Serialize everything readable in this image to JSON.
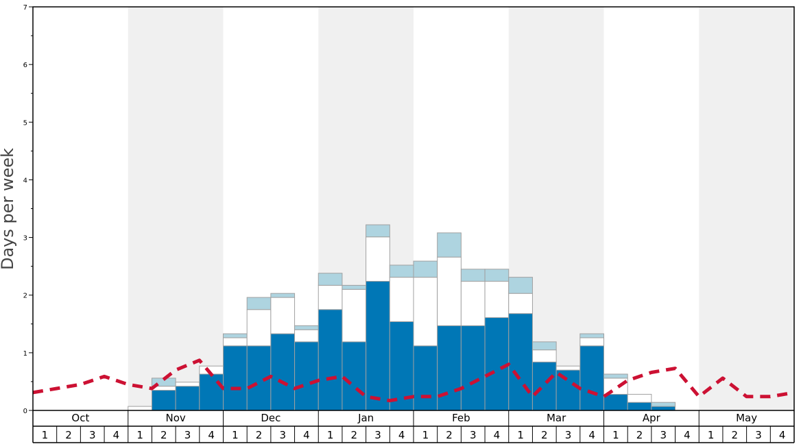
{
  "chart_data": {
    "type": "bar",
    "ylabel": "Days per week",
    "ylim": [
      0,
      7
    ],
    "yticks": [
      0,
      1,
      2,
      3,
      4,
      5,
      6,
      7
    ],
    "months": [
      "Oct",
      "Nov",
      "Dec",
      "Jan",
      "Feb",
      "Mar",
      "Apr",
      "May"
    ],
    "week_labels": [
      "1",
      "2",
      "3",
      "4"
    ],
    "shaded_months": [
      "Nov",
      "Jan",
      "Mar",
      "May"
    ],
    "colors": {
      "dark": "#0077b6",
      "white": "#ffffff",
      "light": "#aed4e0",
      "line": "#cc1133",
      "shade": "#f0f0f0",
      "bar_edge": "#a0a0a0"
    },
    "series": [
      {
        "name": "",
        "values": [
          0,
          0,
          0,
          0,
          0,
          0.35,
          0.42,
          0.63,
          1.12,
          1.12,
          1.33,
          1.19,
          1.75,
          1.19,
          2.24,
          1.54,
          1.12,
          1.47,
          1.47,
          1.61,
          1.68,
          0.84,
          0.7,
          1.12,
          0.28,
          0.14,
          0.07,
          0,
          0,
          0,
          0,
          0
        ]
      },
      {
        "name": "",
        "values": [
          0,
          0,
          0,
          0,
          0.07,
          0.07,
          0.07,
          0.14,
          0.14,
          0.63,
          0.63,
          0.21,
          0.42,
          0.91,
          0.77,
          0.77,
          1.19,
          1.19,
          0.77,
          0.63,
          0.35,
          0.21,
          0.07,
          0.14,
          0.28,
          0.14,
          0,
          0,
          0,
          0,
          0,
          0
        ]
      },
      {
        "name": "",
        "values": [
          0,
          0,
          0,
          0,
          0,
          0.14,
          0,
          0,
          0.07,
          0.21,
          0.07,
          0.07,
          0.21,
          0.07,
          0.21,
          0.21,
          0.28,
          0.42,
          0.21,
          0.21,
          0.28,
          0.14,
          0,
          0.07,
          0.07,
          0,
          0.07,
          0,
          0,
          0,
          0,
          0
        ]
      }
    ],
    "line": {
      "name": "",
      "style": "dashed",
      "values": [
        0.31,
        0.38,
        0.45,
        0.59,
        0.45,
        0.38,
        0.7,
        0.87,
        0.38,
        0.38,
        0.59,
        0.38,
        0.52,
        0.59,
        0.24,
        0.17,
        0.24,
        0.24,
        0.38,
        0.59,
        0.8,
        0.24,
        0.66,
        0.38,
        0.24,
        0.52,
        0.66,
        0.73,
        0.24,
        0.56,
        0.24,
        0.24,
        0.31
      ]
    }
  }
}
